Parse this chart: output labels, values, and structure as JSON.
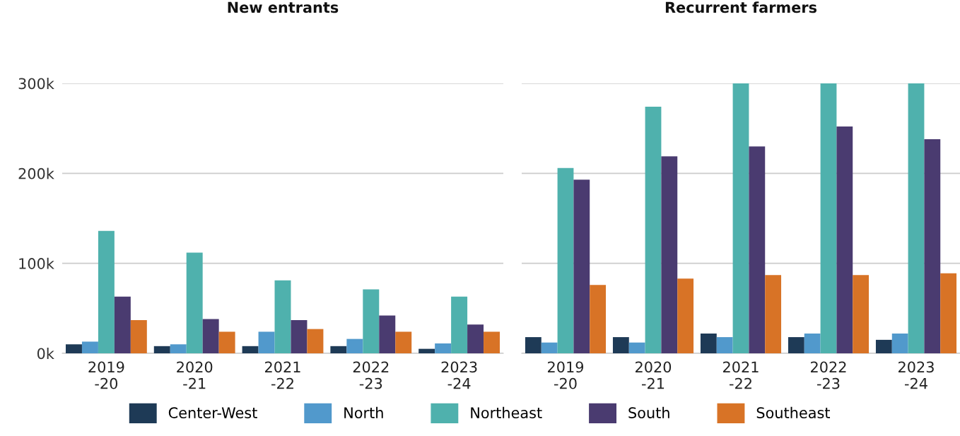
{
  "chart_data": [
    {
      "type": "bar",
      "title": "New entrants",
      "categories": [
        "2019\n-20",
        "2020\n-21",
        "2021\n-22",
        "2022\n-23",
        "2023\n-24"
      ],
      "series": [
        {
          "name": "Center-West",
          "color": "#1e3a56",
          "values": [
            10000,
            8000,
            8000,
            8000,
            5000
          ]
        },
        {
          "name": "North",
          "color": "#5199cc",
          "values": [
            13000,
            10000,
            24000,
            16000,
            11000
          ]
        },
        {
          "name": "Northeast",
          "color": "#4fb1ad",
          "values": [
            136000,
            112000,
            81000,
            71000,
            63000
          ]
        },
        {
          "name": "South",
          "color": "#4a3b70",
          "values": [
            63000,
            38000,
            37000,
            42000,
            32000
          ]
        },
        {
          "name": "Southeast",
          "color": "#d87326",
          "values": [
            37000,
            24000,
            27000,
            24000,
            24000
          ]
        }
      ],
      "ylim": [
        0,
        300000
      ],
      "yticks": [
        {
          "value": 0,
          "label": "0k"
        },
        {
          "value": 100000,
          "label": "100k"
        },
        {
          "value": 200000,
          "label": "200k"
        },
        {
          "value": 300000,
          "label": "300k"
        }
      ],
      "grid": "y",
      "legend": "bottom"
    },
    {
      "type": "bar",
      "title": "Recurrent farmers",
      "categories": [
        "2019\n-20",
        "2020\n-21",
        "2021\n-22",
        "2022\n-23",
        "2023\n-24"
      ],
      "series": [
        {
          "name": "Center-West",
          "color": "#1e3a56",
          "values": [
            18000,
            18000,
            22000,
            18000,
            15000
          ]
        },
        {
          "name": "North",
          "color": "#5199cc",
          "values": [
            12000,
            12000,
            18000,
            22000,
            22000
          ]
        },
        {
          "name": "Northeast",
          "color": "#4fb1ad",
          "values": [
            206000,
            274000,
            300000,
            300000,
            300000
          ]
        },
        {
          "name": "South",
          "color": "#4a3b70",
          "values": [
            193000,
            219000,
            230000,
            252000,
            238000
          ]
        },
        {
          "name": "Southeast",
          "color": "#d87326",
          "values": [
            76000,
            83000,
            87000,
            87000,
            89000
          ]
        }
      ],
      "ylim": [
        0,
        300000
      ],
      "yticks": [
        {
          "value": 0,
          "label": null
        },
        {
          "value": 100000,
          "label": null
        },
        {
          "value": 200000,
          "label": null
        },
        {
          "value": 300000,
          "label": null
        }
      ],
      "grid": "y",
      "tick_labels": "x"
    }
  ]
}
